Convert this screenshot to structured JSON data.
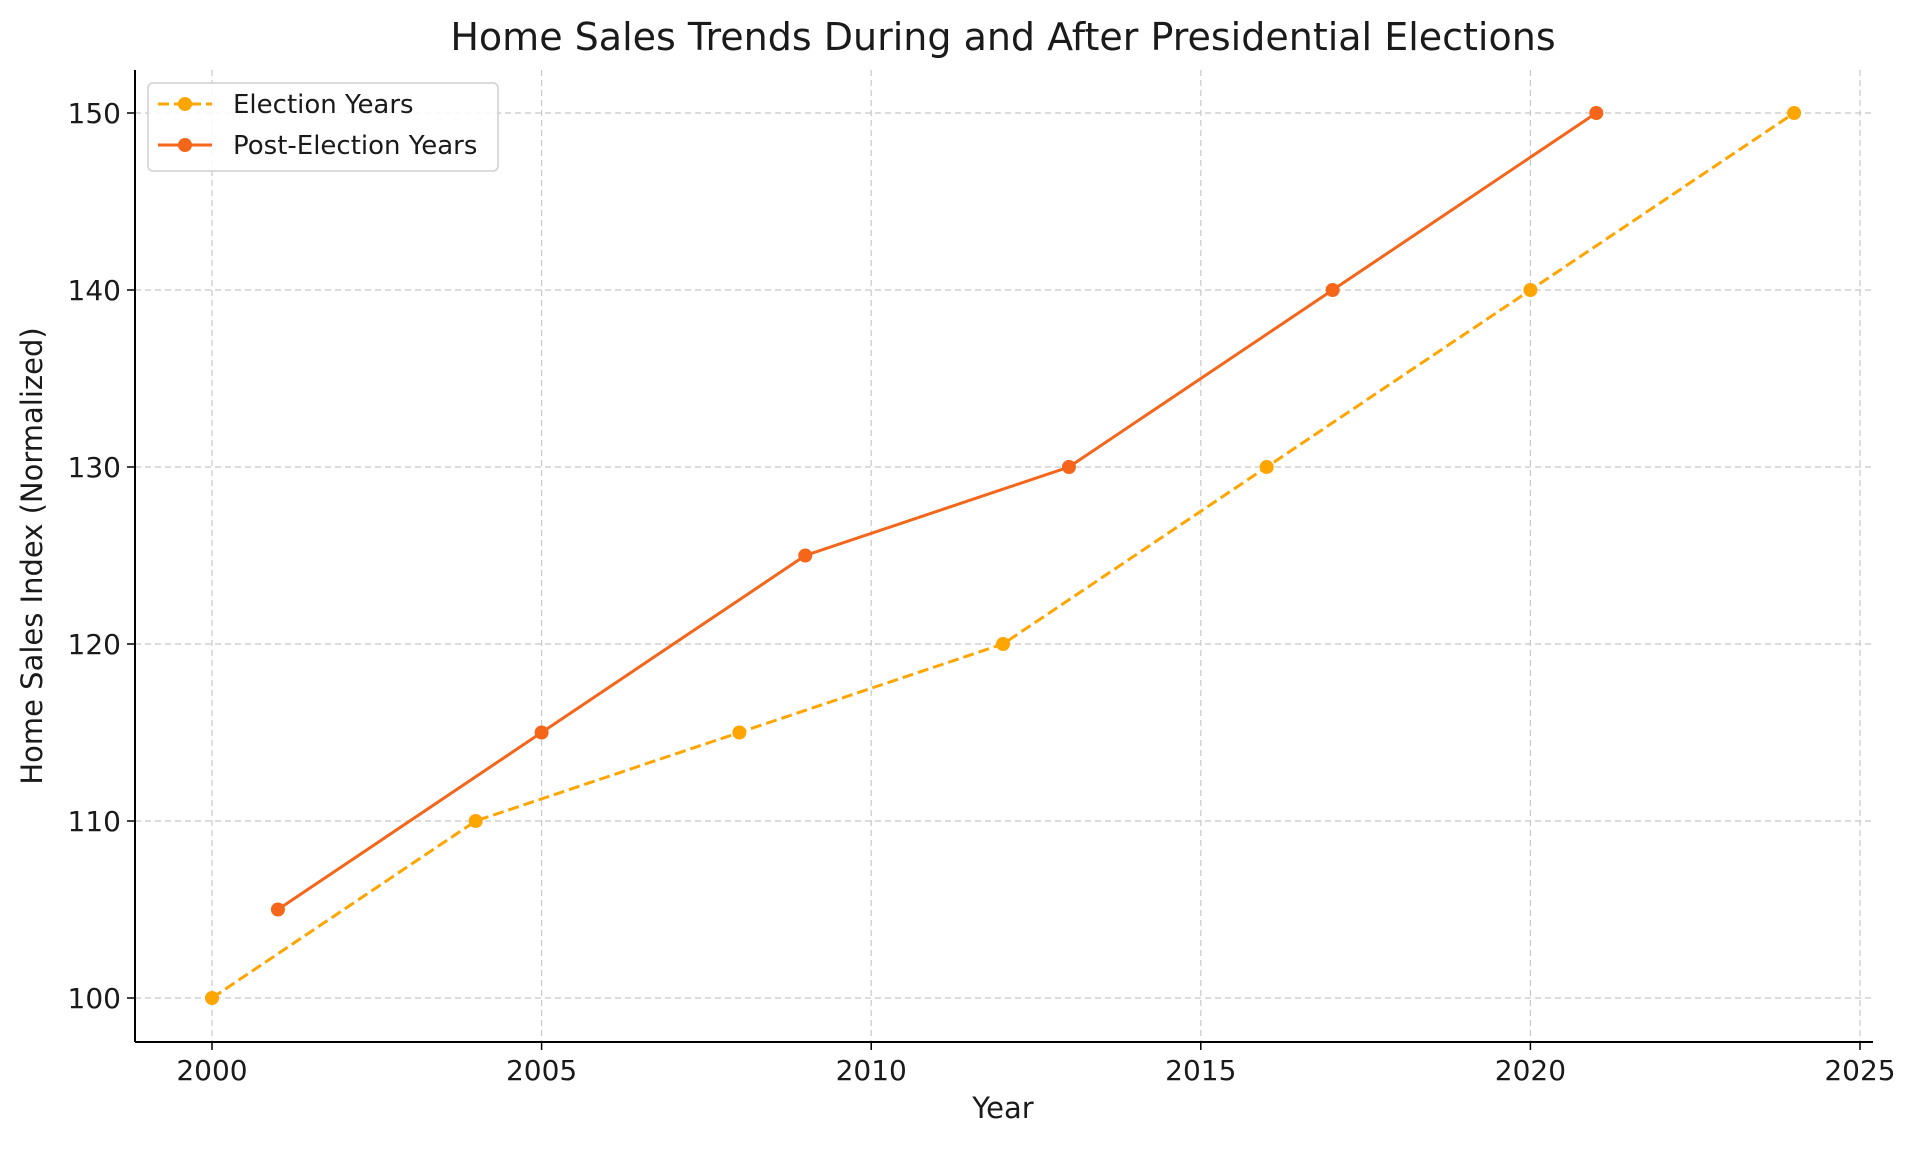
{
  "chart_data": {
    "type": "line",
    "title": "Home Sales Trends During and After Presidential Elections",
    "xlabel": "Year",
    "ylabel": "Home Sales Index (Normalized)",
    "xlim": [
      1998.8,
      2025.3
    ],
    "ylim": [
      97.5,
      152.5
    ],
    "xticks": [
      2000,
      2005,
      2010,
      2015,
      2020,
      2025
    ],
    "yticks": [
      100,
      110,
      120,
      130,
      140,
      150
    ],
    "grid": true,
    "legend_position": "top-left",
    "series": [
      {
        "name": "Election Years",
        "color": "#ffa500",
        "linestyle": "dashed",
        "marker": "circle",
        "x": [
          2000,
          2004,
          2008,
          2012,
          2016,
          2020,
          2024
        ],
        "y": [
          100,
          110,
          115,
          120,
          130,
          140,
          150
        ]
      },
      {
        "name": "Post-Election Years",
        "color": "#f5651a",
        "linestyle": "solid",
        "marker": "circle",
        "x": [
          2001,
          2005,
          2009,
          2013,
          2017,
          2021
        ],
        "y": [
          105,
          115,
          125,
          130,
          140,
          150
        ]
      }
    ]
  }
}
